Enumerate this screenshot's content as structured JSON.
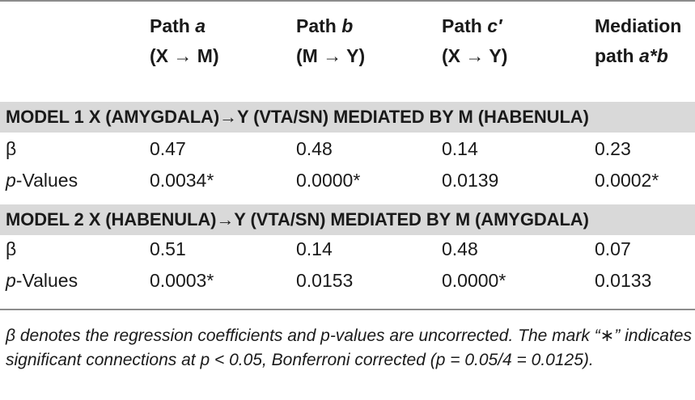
{
  "header": {
    "col1": {
      "line1_prefix": "Path ",
      "line1_var": "a",
      "line2": "(X → M)"
    },
    "col2": {
      "line1_prefix": "Path ",
      "line1_var": "b",
      "line2": "(M → Y)"
    },
    "col3": {
      "line1_prefix": "Path ",
      "line1_var": "c′",
      "line2": "(X → Y)"
    },
    "col4": {
      "line1": "Mediation",
      "line2_prefix": "path ",
      "line2_var": "a*b"
    }
  },
  "models": [
    {
      "title": "MODEL 1 X (AMYGDALA)→Y (VTA/SN) MEDIATED BY M (HABENULA)",
      "beta_label": "β",
      "beta": [
        "0.47",
        "0.48",
        "0.14",
        "0.23"
      ],
      "p_label_italic": "p",
      "p_label_rest": "-Values",
      "p": [
        "0.0034*",
        "0.0000*",
        "0.0139",
        "0.0002*"
      ]
    },
    {
      "title": "MODEL 2 X (HABENULA)→Y (VTA/SN) MEDIATED BY M (AMYGDALA)",
      "beta_label": "β",
      "beta": [
        "0.51",
        "0.14",
        "0.48",
        "0.07"
      ],
      "p_label_italic": "p",
      "p_label_rest": "-Values",
      "p": [
        "0.0003*",
        "0.0153",
        "0.0000*",
        "0.0133"
      ]
    }
  ],
  "footnote": "β denotes the regression coefficients and p-values are uncorrected. The mark “∗” indicates significant connections at p < 0.05, Bonferroni corrected (p = 0.05/4 = 0.0125)."
}
